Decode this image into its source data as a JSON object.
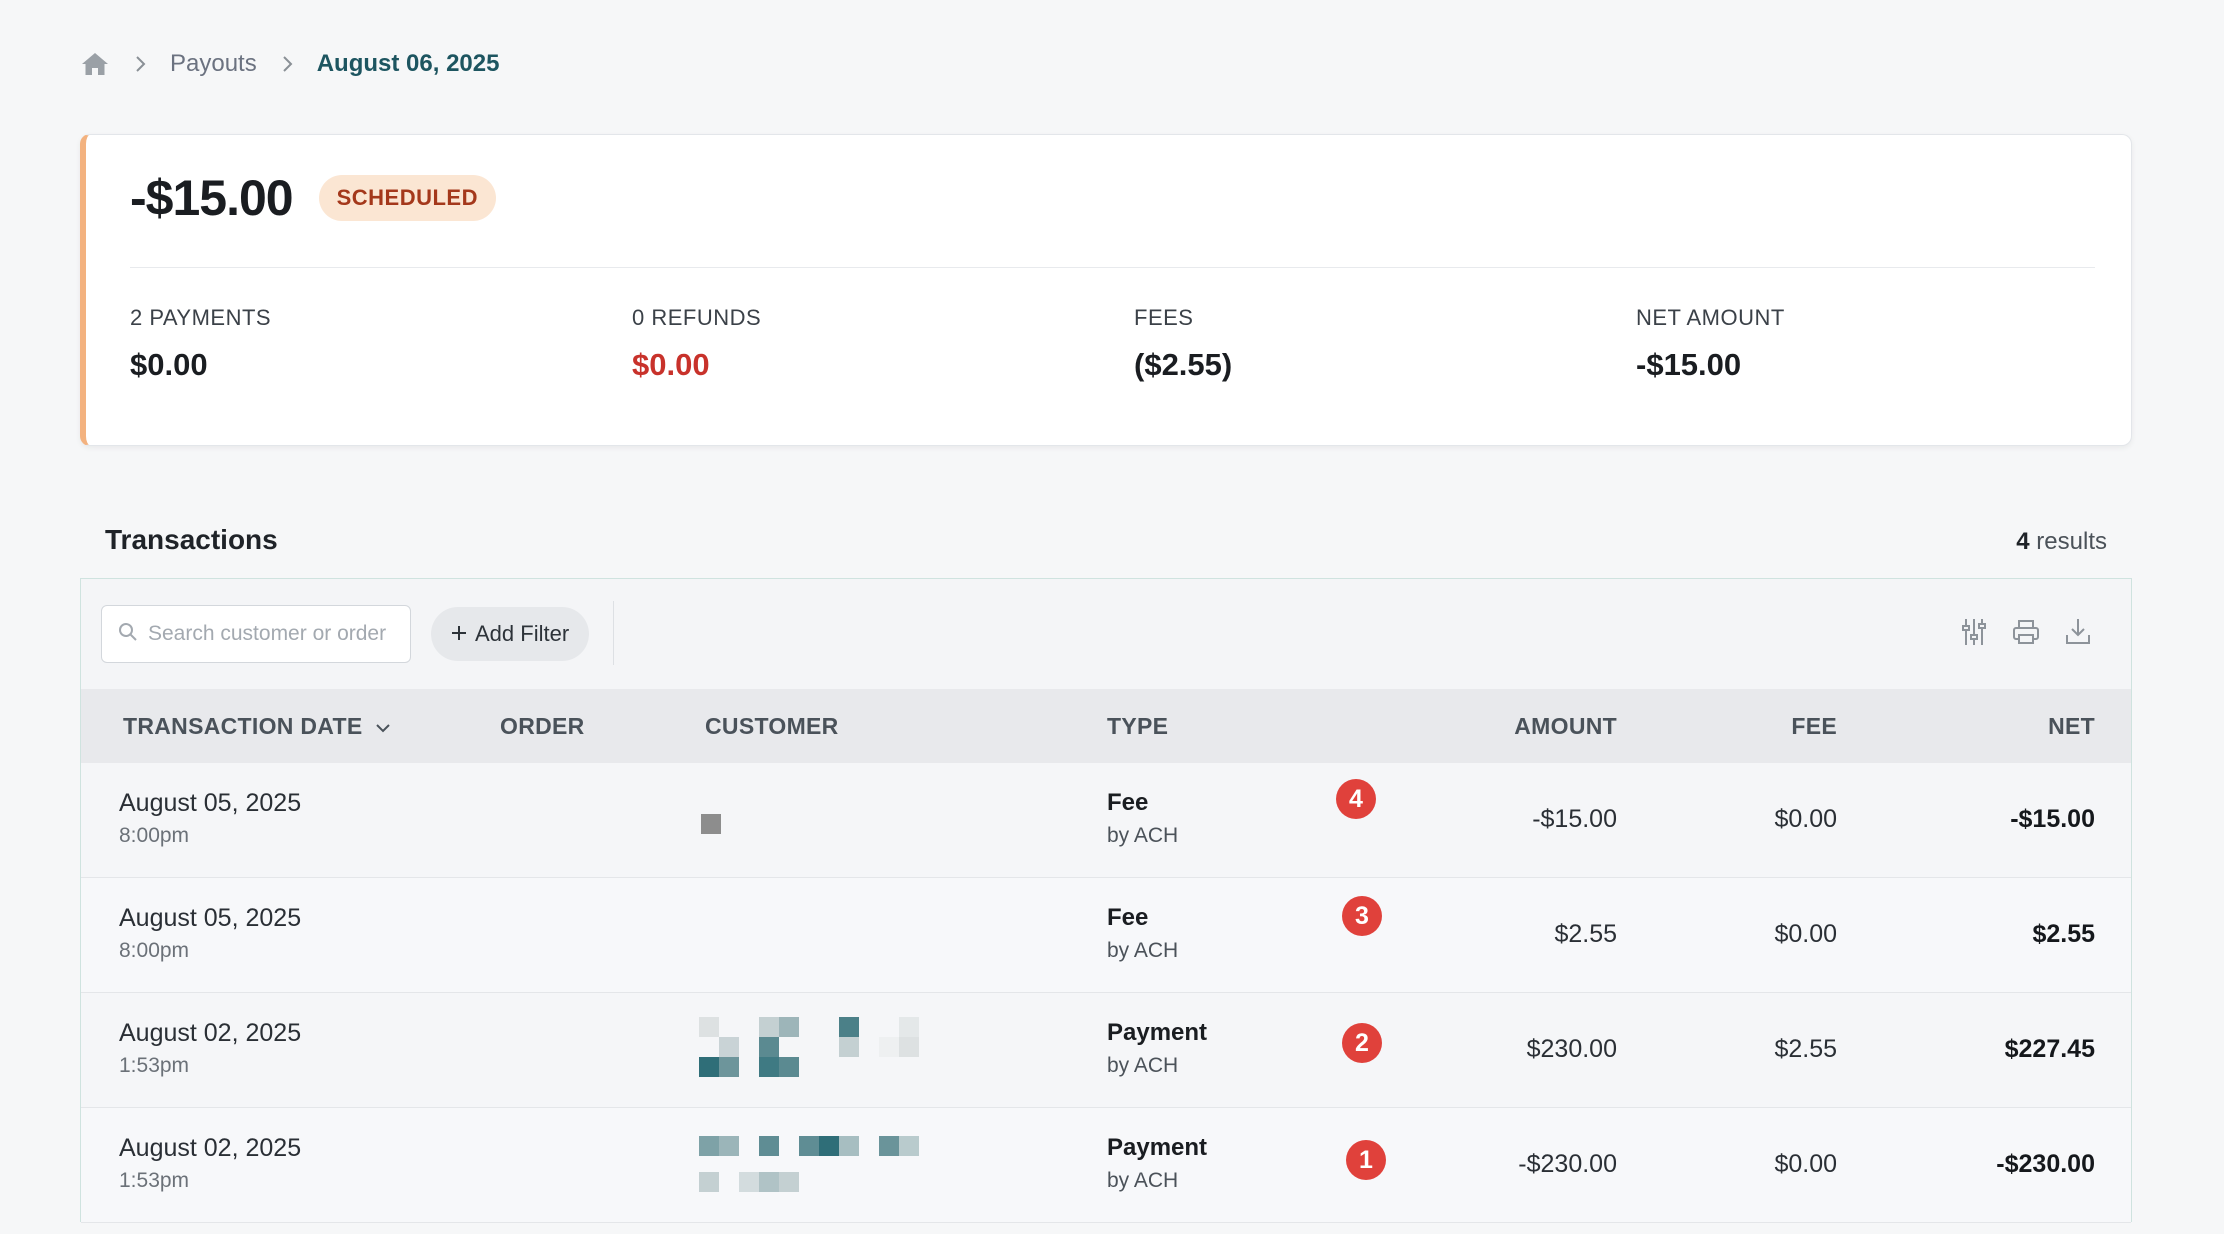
{
  "breadcrumb": {
    "home_icon": "home-icon",
    "items": [
      "Payouts",
      "August 06, 2025"
    ]
  },
  "summary": {
    "amount": "-$15.00",
    "status": "SCHEDULED",
    "stats": [
      {
        "label": "2 PAYMENTS",
        "value": "$0.00"
      },
      {
        "label": "0 REFUNDS",
        "value": "$0.00"
      },
      {
        "label": "FEES",
        "value": "($2.55)"
      },
      {
        "label": "NET AMOUNT",
        "value": "-$15.00"
      }
    ],
    "colors": {
      "accent": "#f3b27f",
      "badge_bg": "#fbe6d3",
      "badge_text": "#a4381b",
      "refund": "#c8322b"
    }
  },
  "transactions": {
    "title": "Transactions",
    "count": "4",
    "count_suffix": " results",
    "search_placeholder": "Search customer or order",
    "add_filter_label": "Add Filter",
    "columns": {
      "date": "TRANSACTION DATE",
      "order": "ORDER",
      "customer": "CUSTOMER",
      "type": "TYPE",
      "amount": "AMOUNT",
      "fee": "FEE",
      "net": "NET"
    },
    "rows": [
      {
        "date": "August 05, 2025",
        "time": "8:00pm",
        "type": "Fee",
        "method": "by ACH",
        "amount": "-$15.00",
        "fee": "$0.00",
        "net": "-$15.00",
        "marker": "4"
      },
      {
        "date": "August 05, 2025",
        "time": "8:00pm",
        "type": "Fee",
        "method": "by ACH",
        "amount": "$2.55",
        "fee": "$0.00",
        "net": "$2.55",
        "marker": "3"
      },
      {
        "date": "August 02, 2025",
        "time": "1:53pm",
        "type": "Payment",
        "method": "by ACH",
        "amount": "$230.00",
        "fee": "$2.55",
        "net": "$227.45",
        "marker": "2"
      },
      {
        "date": "August 02, 2025",
        "time": "1:53pm",
        "type": "Payment",
        "method": "by ACH",
        "amount": "-$230.00",
        "fee": "$0.00",
        "net": "-$230.00",
        "marker": "1"
      }
    ],
    "marker_color": "#e0413b"
  }
}
